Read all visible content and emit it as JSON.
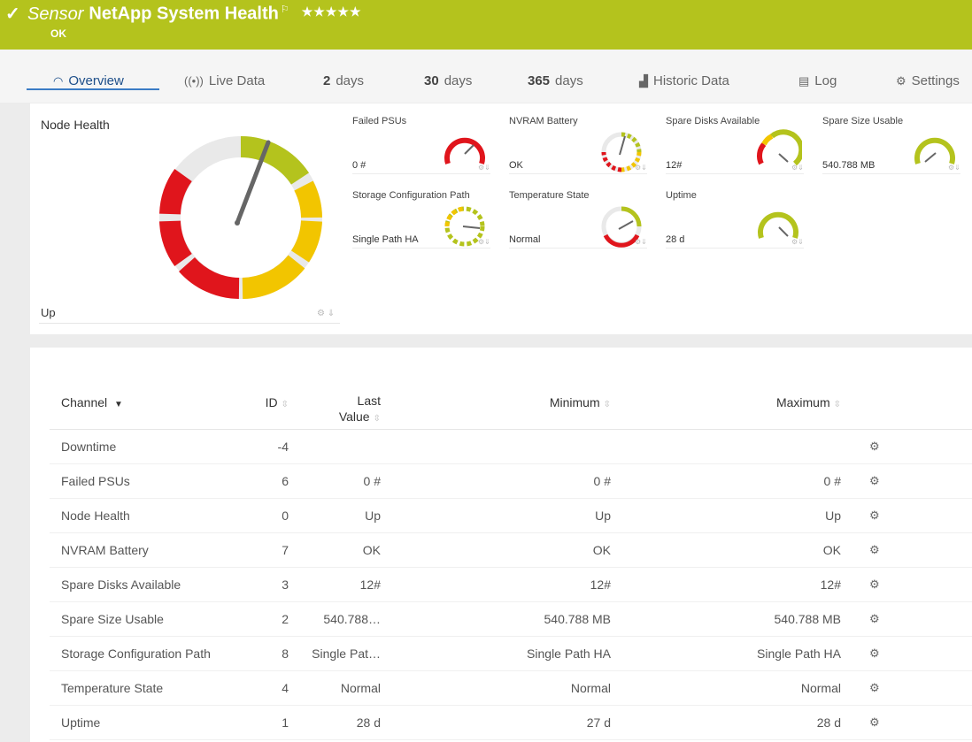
{
  "header": {
    "prefix": "Sensor",
    "title": "NetApp System Health",
    "stars": "★★★★★",
    "status": "OK",
    "color": "#b4c31d"
  },
  "tabs": [
    {
      "icon": "gauge-icon",
      "label": "Overview"
    },
    {
      "icon": "live-data-icon",
      "label": "Live Data"
    },
    {
      "num": "2",
      "label": "days"
    },
    {
      "num": "30",
      "label": "days"
    },
    {
      "num": "365",
      "label": "days"
    },
    {
      "icon": "chart-icon",
      "label": "Historic Data"
    },
    {
      "icon": "log-icon",
      "label": "Log"
    },
    {
      "icon": "gear-icon",
      "label": "Settings"
    }
  ],
  "main_gauge": {
    "title": "Node Health",
    "value": "Up"
  },
  "gauges": [
    {
      "title": "Failed PSUs",
      "value": "0 #"
    },
    {
      "title": "NVRAM Battery",
      "value": "OK"
    },
    {
      "title": "Spare Disks Available",
      "value": "12#"
    },
    {
      "title": "Spare Size Usable",
      "value": "540.788 MB"
    },
    {
      "title": "Storage Configuration Path",
      "value": "Single Path HA"
    },
    {
      "title": "Temperature State",
      "value": "Normal"
    },
    {
      "title": "Uptime",
      "value": "28 d"
    }
  ],
  "table": {
    "headers": {
      "channel": "Channel",
      "id": "ID",
      "last_value_1": "Last",
      "last_value_2": "Value",
      "minimum": "Minimum",
      "maximum": "Maximum"
    },
    "rows": [
      {
        "channel": "Downtime",
        "id": "-4",
        "last": "",
        "min": "",
        "max": ""
      },
      {
        "channel": "Failed PSUs",
        "id": "6",
        "last": "0 #",
        "min": "0 #",
        "max": "0 #"
      },
      {
        "channel": "Node Health",
        "id": "0",
        "last": "Up",
        "min": "Up",
        "max": "Up"
      },
      {
        "channel": "NVRAM Battery",
        "id": "7",
        "last": "OK",
        "min": "OK",
        "max": "OK"
      },
      {
        "channel": "Spare Disks Available",
        "id": "3",
        "last": "12#",
        "min": "12#",
        "max": "12#"
      },
      {
        "channel": "Spare Size Usable",
        "id": "2",
        "last": "540.788…",
        "min": "540.788 MB",
        "max": "540.788 MB"
      },
      {
        "channel": "Storage Configuration Path",
        "id": "8",
        "last": "Single Pat…",
        "min": "Single Path HA",
        "max": "Single Path HA"
      },
      {
        "channel": "Temperature State",
        "id": "4",
        "last": "Normal",
        "min": "Normal",
        "max": "Normal"
      },
      {
        "channel": "Uptime",
        "id": "1",
        "last": "28 d",
        "min": "27 d",
        "max": "28 d"
      }
    ]
  },
  "colors": {
    "accent": "#b4c31d",
    "warning": "#f2c500",
    "error": "#e0151c",
    "tab_active": "#1e4f8a"
  }
}
